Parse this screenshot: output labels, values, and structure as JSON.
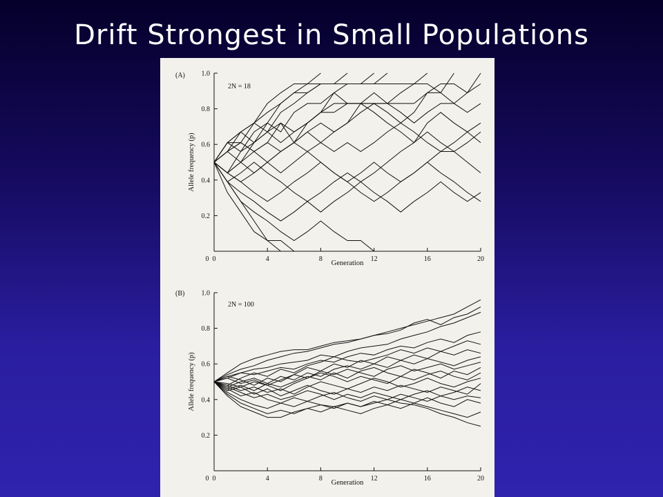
{
  "slide": {
    "title": "Drift Strongest in Small Populations"
  },
  "chart_data": [
    {
      "type": "line",
      "panel_label": "(A)",
      "annotation": "2N = 18",
      "xlabel": "Generation",
      "ylabel": "Allele frequency (p)",
      "xlim": [
        0,
        20
      ],
      "ylim": [
        0,
        1
      ],
      "xticks": [
        0,
        4,
        8,
        12,
        16,
        20
      ],
      "yticks": [
        0,
        0.2,
        0.4,
        0.6,
        0.8,
        1.0
      ],
      "ytick_labels": [
        "0",
        "0.2",
        "0.4",
        "0.6",
        "0.8",
        "1.0"
      ],
      "grid": false,
      "x": [
        0,
        1,
        2,
        3,
        4,
        5,
        6,
        7,
        8,
        9,
        10,
        11,
        12,
        13,
        14,
        15,
        16,
        17,
        18,
        19,
        20
      ],
      "series": [
        {
          "values": [
            0.5,
            0.61,
            0.67,
            0.72,
            0.78,
            0.83,
            0.89,
            0.94,
            1.0,
            null,
            null,
            null,
            null,
            null,
            null,
            null,
            null,
            null,
            null,
            null,
            null
          ]
        },
        {
          "values": [
            0.5,
            0.56,
            0.61,
            0.72,
            0.83,
            0.89,
            0.94,
            0.94,
            0.94,
            0.94,
            1.0,
            null,
            null,
            null,
            null,
            null,
            null,
            null,
            null,
            null,
            null
          ]
        },
        {
          "values": [
            0.5,
            0.44,
            0.5,
            0.61,
            0.67,
            0.78,
            0.83,
            0.89,
            0.94,
            0.94,
            0.94,
            0.94,
            1.0,
            null,
            null,
            null,
            null,
            null,
            null,
            null,
            null
          ]
        },
        {
          "values": [
            0.5,
            0.61,
            0.56,
            0.67,
            0.72,
            0.83,
            0.89,
            0.89,
            0.94,
            0.94,
            0.94,
            0.94,
            0.94,
            1.0,
            null,
            null,
            null,
            null,
            null,
            null,
            null
          ]
        },
        {
          "values": [
            0.5,
            0.56,
            0.67,
            0.61,
            0.72,
            0.67,
            0.78,
            0.83,
            0.83,
            0.89,
            0.94,
            0.94,
            0.94,
            0.94,
            0.94,
            0.94,
            1.0,
            null,
            null,
            null,
            null
          ]
        },
        {
          "values": [
            0.5,
            0.44,
            0.56,
            0.61,
            0.67,
            0.72,
            0.61,
            0.72,
            0.78,
            0.89,
            0.83,
            0.83,
            0.83,
            0.83,
            0.89,
            0.94,
            0.94,
            0.89,
            1.0,
            null,
            null
          ]
        },
        {
          "values": [
            0.5,
            0.61,
            0.61,
            0.56,
            0.61,
            0.72,
            0.67,
            0.72,
            0.78,
            0.78,
            0.83,
            0.83,
            0.83,
            0.78,
            0.72,
            0.78,
            0.89,
            0.94,
            0.94,
            0.89,
            1.0
          ]
        },
        {
          "values": [
            0.5,
            0.44,
            0.5,
            0.56,
            0.61,
            0.56,
            0.61,
            0.67,
            0.72,
            0.67,
            0.72,
            0.78,
            0.83,
            0.83,
            0.83,
            0.83,
            0.89,
            0.89,
            0.83,
            0.89,
            0.94
          ]
        },
        {
          "values": [
            0.5,
            0.56,
            0.5,
            0.44,
            0.5,
            0.56,
            0.61,
            0.67,
            0.61,
            0.67,
            0.72,
            0.83,
            0.89,
            0.83,
            0.78,
            0.72,
            0.78,
            0.83,
            0.83,
            0.78,
            0.83
          ]
        },
        {
          "values": [
            0.5,
            0.61,
            0.67,
            0.72,
            0.67,
            0.61,
            0.67,
            0.72,
            0.78,
            0.83,
            0.83,
            0.83,
            0.78,
            0.72,
            0.67,
            0.61,
            0.72,
            0.78,
            0.72,
            0.67,
            0.72
          ]
        },
        {
          "values": [
            0.5,
            0.44,
            0.39,
            0.44,
            0.5,
            0.56,
            0.61,
            0.56,
            0.61,
            0.56,
            0.61,
            0.56,
            0.61,
            0.67,
            0.72,
            0.67,
            0.61,
            0.56,
            0.61,
            0.67,
            0.61
          ]
        },
        {
          "values": [
            0.5,
            0.56,
            0.61,
            0.56,
            0.5,
            0.44,
            0.5,
            0.56,
            0.5,
            0.44,
            0.39,
            0.44,
            0.5,
            0.44,
            0.39,
            0.44,
            0.5,
            0.56,
            0.56,
            0.61,
            0.67
          ]
        },
        {
          "values": [
            0.5,
            0.39,
            0.44,
            0.5,
            0.44,
            0.39,
            0.33,
            0.28,
            0.22,
            0.28,
            0.33,
            0.39,
            0.44,
            0.5,
            0.56,
            0.61,
            0.67,
            0.61,
            0.56,
            0.5,
            0.44
          ]
        },
        {
          "values": [
            0.5,
            0.44,
            0.39,
            0.33,
            0.28,
            0.33,
            0.39,
            0.44,
            0.5,
            0.44,
            0.39,
            0.33,
            0.28,
            0.33,
            0.39,
            0.44,
            0.5,
            0.44,
            0.39,
            0.33,
            0.28
          ]
        },
        {
          "values": [
            0.5,
            0.39,
            0.33,
            0.28,
            0.22,
            0.17,
            0.22,
            0.28,
            0.33,
            0.39,
            0.44,
            0.39,
            0.33,
            0.28,
            0.22,
            0.28,
            0.33,
            0.39,
            0.33,
            0.28,
            0.33
          ]
        },
        {
          "values": [
            0.5,
            0.39,
            0.28,
            0.22,
            0.17,
            0.11,
            0.06,
            0.11,
            0.17,
            0.11,
            0.06,
            0.06,
            0.0,
            null,
            null,
            null,
            null,
            null,
            null,
            null,
            null
          ]
        },
        {
          "values": [
            0.5,
            0.33,
            0.22,
            0.11,
            0.06,
            0.0,
            null,
            null,
            null,
            null,
            null,
            null,
            null,
            null,
            null,
            null,
            null,
            null,
            null,
            null,
            null
          ]
        },
        {
          "values": [
            0.5,
            0.39,
            0.28,
            0.17,
            0.06,
            0.06,
            0.0,
            null,
            null,
            null,
            null,
            null,
            null,
            null,
            null,
            null,
            null,
            null,
            null,
            null,
            null
          ]
        }
      ]
    },
    {
      "type": "line",
      "panel_label": "(B)",
      "annotation": "2N = 100",
      "xlabel": "Generation",
      "ylabel": "Allele frequency (p)",
      "xlim": [
        0,
        20
      ],
      "ylim": [
        0,
        1
      ],
      "xticks": [
        0,
        4,
        8,
        12,
        16,
        20
      ],
      "yticks": [
        0,
        0.2,
        0.4,
        0.6,
        0.8,
        1.0
      ],
      "ytick_labels": [
        "0",
        "0.2",
        "0.4",
        "0.6",
        "0.8",
        "1.0"
      ],
      "grid": false,
      "x": [
        0,
        1,
        2,
        3,
        4,
        5,
        6,
        7,
        8,
        9,
        10,
        11,
        12,
        13,
        14,
        15,
        16,
        17,
        18,
        19,
        20
      ],
      "series": [
        {
          "values": [
            0.5,
            0.55,
            0.6,
            0.63,
            0.65,
            0.67,
            0.68,
            0.68,
            0.7,
            0.72,
            0.73,
            0.74,
            0.76,
            0.78,
            0.8,
            0.82,
            0.84,
            0.86,
            0.88,
            0.92,
            0.96
          ]
        },
        {
          "values": [
            0.5,
            0.54,
            0.57,
            0.59,
            0.62,
            0.64,
            0.66,
            0.67,
            0.69,
            0.71,
            0.72,
            0.74,
            0.76,
            0.77,
            0.79,
            0.83,
            0.85,
            0.82,
            0.86,
            0.88,
            0.92
          ]
        },
        {
          "values": [
            0.5,
            0.53,
            0.55,
            0.57,
            0.58,
            0.6,
            0.61,
            0.62,
            0.65,
            0.64,
            0.67,
            0.69,
            0.7,
            0.71,
            0.74,
            0.76,
            0.78,
            0.81,
            0.83,
            0.86,
            0.89
          ]
        },
        {
          "values": [
            0.5,
            0.52,
            0.55,
            0.54,
            0.56,
            0.58,
            0.57,
            0.6,
            0.62,
            0.61,
            0.64,
            0.66,
            0.65,
            0.68,
            0.7,
            0.69,
            0.72,
            0.74,
            0.72,
            0.76,
            0.78
          ]
        },
        {
          "values": [
            0.5,
            0.48,
            0.52,
            0.55,
            0.53,
            0.57,
            0.55,
            0.59,
            0.61,
            0.64,
            0.62,
            0.61,
            0.63,
            0.65,
            0.68,
            0.66,
            0.69,
            0.67,
            0.7,
            0.73,
            0.71
          ]
        },
        {
          "values": [
            0.5,
            0.53,
            0.51,
            0.48,
            0.52,
            0.5,
            0.54,
            0.58,
            0.56,
            0.6,
            0.58,
            0.62,
            0.6,
            0.64,
            0.62,
            0.65,
            0.63,
            0.67,
            0.65,
            0.68,
            0.66
          ]
        },
        {
          "values": [
            0.5,
            0.47,
            0.5,
            0.52,
            0.49,
            0.53,
            0.51,
            0.55,
            0.53,
            0.57,
            0.59,
            0.57,
            0.6,
            0.58,
            0.62,
            0.6,
            0.63,
            0.61,
            0.59,
            0.62,
            0.64
          ]
        },
        {
          "values": [
            0.5,
            0.49,
            0.47,
            0.5,
            0.48,
            0.51,
            0.54,
            0.52,
            0.56,
            0.54,
            0.57,
            0.55,
            0.53,
            0.57,
            0.59,
            0.56,
            0.58,
            0.6,
            0.57,
            0.59,
            0.61
          ]
        },
        {
          "values": [
            0.5,
            0.46,
            0.48,
            0.45,
            0.49,
            0.47,
            0.5,
            0.53,
            0.51,
            0.55,
            0.52,
            0.56,
            0.58,
            0.55,
            0.53,
            0.57,
            0.55,
            0.52,
            0.56,
            0.54,
            0.58
          ]
        },
        {
          "values": [
            0.5,
            0.52,
            0.49,
            0.51,
            0.48,
            0.45,
            0.49,
            0.52,
            0.55,
            0.53,
            0.5,
            0.53,
            0.51,
            0.49,
            0.53,
            0.51,
            0.54,
            0.56,
            0.53,
            0.51,
            0.55
          ]
        },
        {
          "values": [
            0.5,
            0.48,
            0.45,
            0.47,
            0.44,
            0.46,
            0.43,
            0.47,
            0.5,
            0.48,
            0.46,
            0.49,
            0.52,
            0.5,
            0.47,
            0.49,
            0.52,
            0.49,
            0.47,
            0.5,
            0.52
          ]
        },
        {
          "values": [
            0.5,
            0.45,
            0.47,
            0.43,
            0.46,
            0.42,
            0.45,
            0.48,
            0.45,
            0.43,
            0.46,
            0.44,
            0.47,
            0.45,
            0.48,
            0.46,
            0.44,
            0.47,
            0.45,
            0.43,
            0.49
          ]
        },
        {
          "values": [
            0.5,
            0.47,
            0.44,
            0.41,
            0.43,
            0.4,
            0.42,
            0.45,
            0.43,
            0.4,
            0.43,
            0.41,
            0.44,
            0.42,
            0.4,
            0.43,
            0.45,
            0.42,
            0.44,
            0.47,
            0.45
          ]
        },
        {
          "values": [
            0.5,
            0.46,
            0.42,
            0.44,
            0.4,
            0.38,
            0.41,
            0.39,
            0.42,
            0.44,
            0.41,
            0.39,
            0.42,
            0.4,
            0.43,
            0.41,
            0.39,
            0.42,
            0.4,
            0.42,
            0.41
          ]
        },
        {
          "values": [
            0.5,
            0.44,
            0.4,
            0.37,
            0.35,
            0.38,
            0.36,
            0.39,
            0.37,
            0.35,
            0.38,
            0.36,
            0.39,
            0.37,
            0.4,
            0.38,
            0.41,
            0.38,
            0.36,
            0.4,
            0.38
          ]
        },
        {
          "values": [
            0.5,
            0.43,
            0.38,
            0.35,
            0.32,
            0.34,
            0.32,
            0.35,
            0.33,
            0.36,
            0.34,
            0.32,
            0.35,
            0.37,
            0.35,
            0.38,
            0.36,
            0.34,
            0.32,
            0.3,
            0.33
          ]
        },
        {
          "values": [
            0.5,
            0.42,
            0.36,
            0.33,
            0.3,
            0.3,
            0.33,
            0.35,
            0.37,
            0.36,
            0.38,
            0.36,
            0.38,
            0.4,
            0.38,
            0.37,
            0.35,
            0.32,
            0.3,
            0.27,
            0.25
          ]
        }
      ]
    }
  ]
}
